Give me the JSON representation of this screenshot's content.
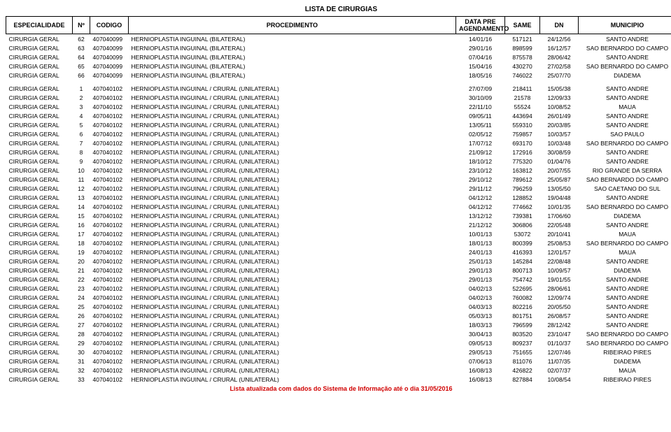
{
  "title": "LISTA DE CIRURGIAS",
  "footer": "Lista atualizada com dados do Sistema de Informação até o dia 31/05/2016",
  "headers": {
    "especialidade": "ESPECIALIDADE",
    "no": "Nº",
    "codigo": "CODIGO",
    "procedimento": "PROCEDIMENTO",
    "data": "DATA PRE AGENDAMENTO",
    "same": "SAME",
    "dn": "DN",
    "municipio": "MUNICIPIO"
  },
  "group1": [
    {
      "esp": "CIRURGIA GERAL",
      "no": "62",
      "cod": "407040099",
      "proc": "HERNIOPLASTIA INGUINAL (BILATERAL)",
      "data": "14/01/16",
      "same": "517121",
      "dn": "24/12/56",
      "mun": "SANTO ANDRE"
    },
    {
      "esp": "CIRURGIA GERAL",
      "no": "63",
      "cod": "407040099",
      "proc": "HERNIOPLASTIA INGUINAL (BILATERAL)",
      "data": "29/01/16",
      "same": "898599",
      "dn": "16/12/57",
      "mun": "SAO BERNARDO DO CAMPO"
    },
    {
      "esp": "CIRURGIA GERAL",
      "no": "64",
      "cod": "407040099",
      "proc": "HERNIOPLASTIA INGUINAL (BILATERAL)",
      "data": "07/04/16",
      "same": "875578",
      "dn": "28/06/42",
      "mun": "SANTO ANDRE"
    },
    {
      "esp": "CIRURGIA GERAL",
      "no": "65",
      "cod": "407040099",
      "proc": "HERNIOPLASTIA INGUINAL (BILATERAL)",
      "data": "15/04/16",
      "same": "430270",
      "dn": "27/02/58",
      "mun": "SAO BERNARDO DO CAMPO"
    },
    {
      "esp": "CIRURGIA GERAL",
      "no": "66",
      "cod": "407040099",
      "proc": "HERNIOPLASTIA INGUINAL (BILATERAL)",
      "data": "18/05/16",
      "same": "746022",
      "dn": "25/07/70",
      "mun": "DIADEMA"
    }
  ],
  "group2": [
    {
      "esp": "CIRURGIA GERAL",
      "no": "1",
      "cod": "407040102",
      "proc": "HERNIOPLASTIA INGUINAL / CRURAL (UNILATERAL)",
      "data": "27/07/09",
      "same": "218411",
      "dn": "15/05/38",
      "mun": "SANTO ANDRE"
    },
    {
      "esp": "CIRURGIA GERAL",
      "no": "2",
      "cod": "407040102",
      "proc": "HERNIOPLASTIA INGUINAL / CRURAL (UNILATERAL)",
      "data": "30/10/09",
      "same": "21578",
      "dn": "12/09/33",
      "mun": "SANTO ANDRE"
    },
    {
      "esp": "CIRURGIA GERAL",
      "no": "3",
      "cod": "407040102",
      "proc": "HERNIOPLASTIA INGUINAL / CRURAL (UNILATERAL)",
      "data": "22/11/10",
      "same": "55524",
      "dn": "10/08/52",
      "mun": "MAUA"
    },
    {
      "esp": "CIRURGIA GERAL",
      "no": "4",
      "cod": "407040102",
      "proc": "HERNIOPLASTIA INGUINAL / CRURAL (UNILATERAL)",
      "data": "09/05/11",
      "same": "443694",
      "dn": "26/01/49",
      "mun": "SANTO ANDRE"
    },
    {
      "esp": "CIRURGIA GERAL",
      "no": "5",
      "cod": "407040102",
      "proc": "HERNIOPLASTIA INGUINAL / CRURAL (UNILATERAL)",
      "data": "13/05/11",
      "same": "559310",
      "dn": "20/03/85",
      "mun": "SANTO ANDRE"
    },
    {
      "esp": "CIRURGIA GERAL",
      "no": "6",
      "cod": "407040102",
      "proc": "HERNIOPLASTIA INGUINAL / CRURAL (UNILATERAL)",
      "data": "02/05/12",
      "same": "759857",
      "dn": "10/03/57",
      "mun": "SAO PAULO"
    },
    {
      "esp": "CIRURGIA GERAL",
      "no": "7",
      "cod": "407040102",
      "proc": "HERNIOPLASTIA INGUINAL / CRURAL (UNILATERAL)",
      "data": "17/07/12",
      "same": "693170",
      "dn": "10/03/48",
      "mun": "SAO BERNARDO DO CAMPO"
    },
    {
      "esp": "CIRURGIA GERAL",
      "no": "8",
      "cod": "407040102",
      "proc": "HERNIOPLASTIA INGUINAL / CRURAL (UNILATERAL)",
      "data": "21/09/12",
      "same": "172916",
      "dn": "30/08/59",
      "mun": "SANTO ANDRE"
    },
    {
      "esp": "CIRURGIA GERAL",
      "no": "9",
      "cod": "407040102",
      "proc": "HERNIOPLASTIA INGUINAL / CRURAL (UNILATERAL)",
      "data": "18/10/12",
      "same": "775320",
      "dn": "01/04/76",
      "mun": "SANTO ANDRE"
    },
    {
      "esp": "CIRURGIA GERAL",
      "no": "10",
      "cod": "407040102",
      "proc": "HERNIOPLASTIA INGUINAL / CRURAL (UNILATERAL)",
      "data": "23/10/12",
      "same": "163812",
      "dn": "20/07/55",
      "mun": "RIO GRANDE DA SERRA"
    },
    {
      "esp": "CIRURGIA GERAL",
      "no": "11",
      "cod": "407040102",
      "proc": "HERNIOPLASTIA INGUINAL / CRURAL (UNILATERAL)",
      "data": "29/10/12",
      "same": "789612",
      "dn": "25/05/87",
      "mun": "SAO BERNARDO DO CAMPO"
    },
    {
      "esp": "CIRURGIA GERAL",
      "no": "12",
      "cod": "407040102",
      "proc": "HERNIOPLASTIA INGUINAL / CRURAL (UNILATERAL)",
      "data": "29/11/12",
      "same": "796259",
      "dn": "13/05/50",
      "mun": "SAO CAETANO DO SUL"
    },
    {
      "esp": "CIRURGIA GERAL",
      "no": "13",
      "cod": "407040102",
      "proc": "HERNIOPLASTIA INGUINAL / CRURAL (UNILATERAL)",
      "data": "04/12/12",
      "same": "128852",
      "dn": "19/04/48",
      "mun": "SANTO ANDRE"
    },
    {
      "esp": "CIRURGIA GERAL",
      "no": "14",
      "cod": "407040102",
      "proc": "HERNIOPLASTIA INGUINAL / CRURAL (UNILATERAL)",
      "data": "04/12/12",
      "same": "774662",
      "dn": "10/01/35",
      "mun": "SAO BERNARDO DO CAMPO"
    },
    {
      "esp": "CIRURGIA GERAL",
      "no": "15",
      "cod": "407040102",
      "proc": "HERNIOPLASTIA INGUINAL / CRURAL (UNILATERAL)",
      "data": "13/12/12",
      "same": "739381",
      "dn": "17/06/60",
      "mun": "DIADEMA"
    },
    {
      "esp": "CIRURGIA GERAL",
      "no": "16",
      "cod": "407040102",
      "proc": "HERNIOPLASTIA INGUINAL / CRURAL (UNILATERAL)",
      "data": "21/12/12",
      "same": "306806",
      "dn": "22/05/48",
      "mun": "SANTO ANDRE"
    },
    {
      "esp": "CIRURGIA GERAL",
      "no": "17",
      "cod": "407040102",
      "proc": "HERNIOPLASTIA INGUINAL / CRURAL (UNILATERAL)",
      "data": "10/01/13",
      "same": "53072",
      "dn": "20/10/41",
      "mun": "MAUA"
    },
    {
      "esp": "CIRURGIA GERAL",
      "no": "18",
      "cod": "407040102",
      "proc": "HERNIOPLASTIA INGUINAL / CRURAL (UNILATERAL)",
      "data": "18/01/13",
      "same": "800399",
      "dn": "25/08/53",
      "mun": "SAO BERNARDO DO CAMPO"
    },
    {
      "esp": "CIRURGIA GERAL",
      "no": "19",
      "cod": "407040102",
      "proc": "HERNIOPLASTIA INGUINAL / CRURAL (UNILATERAL)",
      "data": "24/01/13",
      "same": "416393",
      "dn": "12/01/57",
      "mun": "MAUA"
    },
    {
      "esp": "CIRURGIA GERAL",
      "no": "20",
      "cod": "407040102",
      "proc": "HERNIOPLASTIA INGUINAL / CRURAL (UNILATERAL)",
      "data": "25/01/13",
      "same": "145284",
      "dn": "22/08/48",
      "mun": "SANTO ANDRE"
    },
    {
      "esp": "CIRURGIA GERAL",
      "no": "21",
      "cod": "407040102",
      "proc": "HERNIOPLASTIA INGUINAL / CRURAL (UNILATERAL)",
      "data": "29/01/13",
      "same": "800713",
      "dn": "10/09/57",
      "mun": "DIADEMA"
    },
    {
      "esp": "CIRURGIA GERAL",
      "no": "22",
      "cod": "407040102",
      "proc": "HERNIOPLASTIA INGUINAL / CRURAL (UNILATERAL)",
      "data": "29/01/13",
      "same": "754742",
      "dn": "19/01/55",
      "mun": "SANTO ANDRE"
    },
    {
      "esp": "CIRURGIA GERAL",
      "no": "23",
      "cod": "407040102",
      "proc": "HERNIOPLASTIA INGUINAL / CRURAL (UNILATERAL)",
      "data": "04/02/13",
      "same": "522695",
      "dn": "28/06/61",
      "mun": "SANTO ANDRE"
    },
    {
      "esp": "CIRURGIA GERAL",
      "no": "24",
      "cod": "407040102",
      "proc": "HERNIOPLASTIA INGUINAL / CRURAL (UNILATERAL)",
      "data": "04/02/13",
      "same": "760082",
      "dn": "12/09/74",
      "mun": "SANTO ANDRE"
    },
    {
      "esp": "CIRURGIA GERAL",
      "no": "25",
      "cod": "407040102",
      "proc": "HERNIOPLASTIA INGUINAL / CRURAL (UNILATERAL)",
      "data": "04/03/13",
      "same": "802216",
      "dn": "20/05/50",
      "mun": "SANTO ANDRE"
    },
    {
      "esp": "CIRURGIA GERAL",
      "no": "26",
      "cod": "407040102",
      "proc": "HERNIOPLASTIA INGUINAL / CRURAL (UNILATERAL)",
      "data": "05/03/13",
      "same": "801751",
      "dn": "26/08/57",
      "mun": "SANTO ANDRE"
    },
    {
      "esp": "CIRURGIA GERAL",
      "no": "27",
      "cod": "407040102",
      "proc": "HERNIOPLASTIA INGUINAL / CRURAL (UNILATERAL)",
      "data": "18/03/13",
      "same": "796599",
      "dn": "28/12/42",
      "mun": "SANTO ANDRE"
    },
    {
      "esp": "CIRURGIA GERAL",
      "no": "28",
      "cod": "407040102",
      "proc": "HERNIOPLASTIA INGUINAL / CRURAL (UNILATERAL)",
      "data": "30/04/13",
      "same": "803520",
      "dn": "23/10/47",
      "mun": "SAO BERNARDO DO CAMPO"
    },
    {
      "esp": "CIRURGIA GERAL",
      "no": "29",
      "cod": "407040102",
      "proc": "HERNIOPLASTIA INGUINAL / CRURAL (UNILATERAL)",
      "data": "09/05/13",
      "same": "809237",
      "dn": "01/10/37",
      "mun": "SAO BERNARDO DO CAMPO"
    },
    {
      "esp": "CIRURGIA GERAL",
      "no": "30",
      "cod": "407040102",
      "proc": "HERNIOPLASTIA INGUINAL / CRURAL (UNILATERAL)",
      "data": "29/05/13",
      "same": "751655",
      "dn": "12/07/46",
      "mun": "RIBEIRAO PIRES"
    },
    {
      "esp": "CIRURGIA GERAL",
      "no": "31",
      "cod": "407040102",
      "proc": "HERNIOPLASTIA INGUINAL / CRURAL (UNILATERAL)",
      "data": "07/06/13",
      "same": "811076",
      "dn": "11/07/35",
      "mun": "DIADEMA"
    },
    {
      "esp": "CIRURGIA GERAL",
      "no": "32",
      "cod": "407040102",
      "proc": "HERNIOPLASTIA INGUINAL / CRURAL (UNILATERAL)",
      "data": "16/08/13",
      "same": "426822",
      "dn": "02/07/37",
      "mun": "MAUA"
    },
    {
      "esp": "CIRURGIA GERAL",
      "no": "33",
      "cod": "407040102",
      "proc": "HERNIOPLASTIA INGUINAL / CRURAL (UNILATERAL)",
      "data": "16/08/13",
      "same": "827884",
      "dn": "10/08/54",
      "mun": "RIBEIRAO PIRES"
    }
  ]
}
